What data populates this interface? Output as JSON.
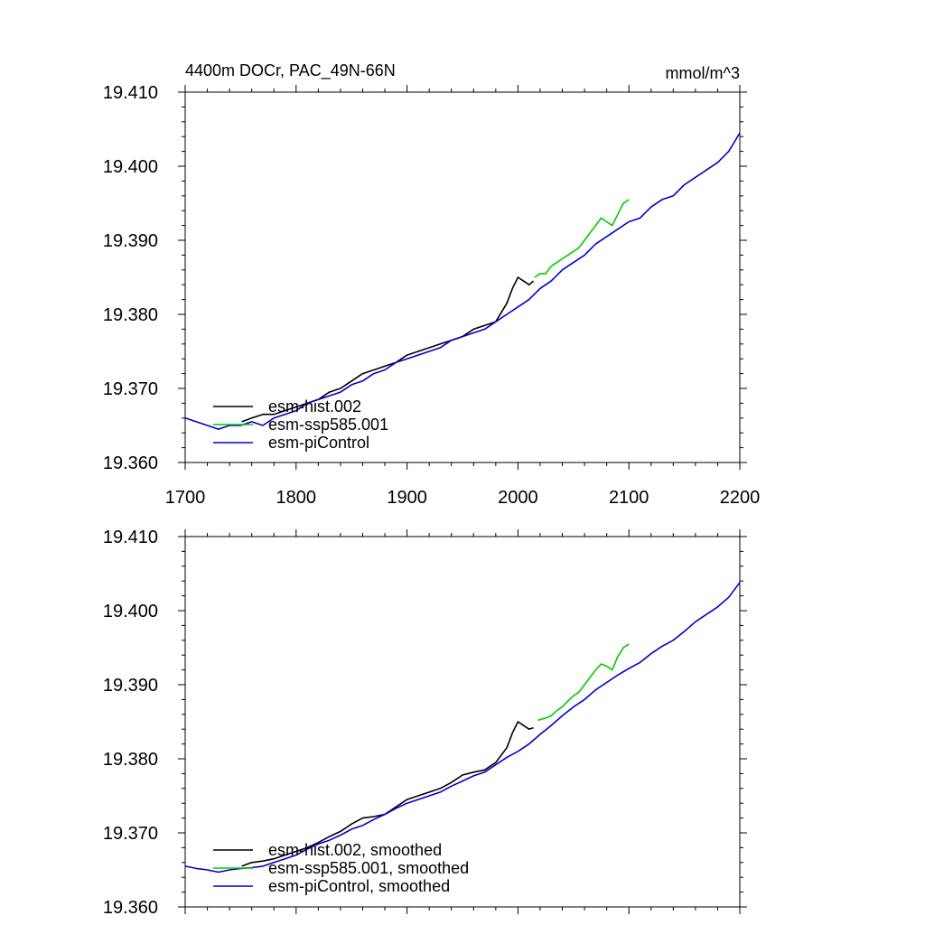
{
  "chart_data": [
    {
      "type": "line",
      "panel": "top",
      "title_left": "4400m DOCr, PAC_49N-66N",
      "title_right": "mmol/m^3",
      "xlim": [
        1700,
        2200
      ],
      "ylim": [
        19.36,
        19.41
      ],
      "x_ticks": [
        "1700",
        "1800",
        "1900",
        "2000",
        "2100",
        "2200"
      ],
      "y_ticks": [
        "19.360",
        "19.370",
        "19.380",
        "19.390",
        "19.400",
        "19.410"
      ],
      "legend_position": "bottom-left",
      "series": [
        {
          "name": "esm-hist.002",
          "color": "#000000",
          "x": [
            1751,
            1760,
            1770,
            1780,
            1790,
            1800,
            1810,
            1820,
            1830,
            1840,
            1850,
            1860,
            1870,
            1880,
            1890,
            1900,
            1910,
            1920,
            1930,
            1940,
            1950,
            1960,
            1970,
            1980,
            1990,
            1995,
            2000,
            2005,
            2010,
            2014
          ],
          "y": [
            19.3655,
            19.366,
            19.3665,
            19.3665,
            19.367,
            19.3675,
            19.368,
            19.3685,
            19.3695,
            19.37,
            19.371,
            19.372,
            19.3725,
            19.373,
            19.3735,
            19.3745,
            19.375,
            19.3755,
            19.376,
            19.3765,
            19.377,
            19.378,
            19.3785,
            19.379,
            19.3815,
            19.3835,
            19.385,
            19.3845,
            19.384,
            19.3845
          ]
        },
        {
          "name": "esm-ssp585.001",
          "color": "#00cc00",
          "x": [
            2015,
            2020,
            2025,
            2030,
            2035,
            2040,
            2045,
            2050,
            2055,
            2060,
            2065,
            2070,
            2075,
            2080,
            2085,
            2090,
            2095,
            2100
          ],
          "y": [
            19.385,
            19.3855,
            19.3855,
            19.3865,
            19.387,
            19.3875,
            19.388,
            19.3885,
            19.389,
            19.39,
            19.391,
            19.392,
            19.393,
            19.3925,
            19.392,
            19.3935,
            19.395,
            19.3955
          ]
        },
        {
          "name": "esm-piControl",
          "color": "#0000cc",
          "x": [
            1700,
            1710,
            1720,
            1730,
            1740,
            1750,
            1760,
            1770,
            1780,
            1790,
            1800,
            1810,
            1820,
            1830,
            1840,
            1850,
            1860,
            1870,
            1880,
            1890,
            1900,
            1910,
            1920,
            1930,
            1940,
            1950,
            1960,
            1970,
            1980,
            1990,
            2000,
            2010,
            2020,
            2030,
            2040,
            2050,
            2060,
            2070,
            2080,
            2090,
            2100,
            2110,
            2120,
            2130,
            2140,
            2150,
            2160,
            2170,
            2180,
            2190,
            2200
          ],
          "y": [
            19.366,
            19.3655,
            19.365,
            19.3645,
            19.365,
            19.365,
            19.3655,
            19.365,
            19.366,
            19.3665,
            19.367,
            19.368,
            19.3685,
            19.369,
            19.3695,
            19.3705,
            19.371,
            19.372,
            19.3725,
            19.3735,
            19.374,
            19.3745,
            19.375,
            19.3755,
            19.3765,
            19.377,
            19.3775,
            19.378,
            19.379,
            19.38,
            19.381,
            19.382,
            19.3835,
            19.3845,
            19.386,
            19.387,
            19.388,
            19.3895,
            19.3905,
            19.3915,
            19.3925,
            19.393,
            19.3945,
            19.3955,
            19.396,
            19.3975,
            19.3985,
            19.3995,
            19.4005,
            19.402,
            19.4045
          ]
        }
      ]
    },
    {
      "type": "line",
      "panel": "bottom",
      "xlim": [
        1700,
        2200
      ],
      "ylim": [
        19.36,
        19.41
      ],
      "y_ticks": [
        "19.360",
        "19.370",
        "19.380",
        "19.390",
        "19.400",
        "19.410"
      ],
      "legend_position": "bottom-left",
      "series": [
        {
          "name": "esm-hist.002, smoothed",
          "color": "#000000",
          "x": [
            1751,
            1760,
            1770,
            1780,
            1790,
            1800,
            1810,
            1820,
            1830,
            1840,
            1850,
            1860,
            1870,
            1880,
            1890,
            1900,
            1910,
            1920,
            1930,
            1940,
            1950,
            1960,
            1970,
            1980,
            1990,
            1995,
            2000,
            2005,
            2010,
            2014
          ],
          "y": [
            19.3655,
            19.366,
            19.3662,
            19.3665,
            19.367,
            19.3675,
            19.368,
            19.3687,
            19.3695,
            19.3702,
            19.3712,
            19.372,
            19.3722,
            19.3725,
            19.3735,
            19.3745,
            19.375,
            19.3755,
            19.376,
            19.3768,
            19.3778,
            19.3782,
            19.3785,
            19.3795,
            19.3815,
            19.3835,
            19.385,
            19.3845,
            19.384,
            19.3842
          ]
        },
        {
          "name": "esm-ssp585.001, smoothed",
          "color": "#00cc00",
          "x": [
            2018,
            2025,
            2030,
            2035,
            2040,
            2045,
            2050,
            2055,
            2060,
            2065,
            2070,
            2075,
            2080,
            2085,
            2090,
            2095,
            2100
          ],
          "y": [
            19.3852,
            19.3855,
            19.3858,
            19.3865,
            19.387,
            19.3878,
            19.3885,
            19.389,
            19.39,
            19.391,
            19.392,
            19.3928,
            19.3925,
            19.392,
            19.3938,
            19.395,
            19.3955
          ]
        },
        {
          "name": "esm-piControl, smoothed",
          "color": "#0000cc",
          "x": [
            1700,
            1710,
            1720,
            1730,
            1740,
            1750,
            1760,
            1770,
            1780,
            1790,
            1800,
            1810,
            1820,
            1830,
            1840,
            1850,
            1860,
            1870,
            1880,
            1890,
            1900,
            1910,
            1920,
            1930,
            1940,
            1950,
            1960,
            1970,
            1980,
            1990,
            2000,
            2010,
            2020,
            2030,
            2040,
            2050,
            2060,
            2070,
            2080,
            2090,
            2100,
            2110,
            2120,
            2130,
            2140,
            2150,
            2160,
            2170,
            2180,
            2190,
            2200
          ],
          "y": [
            19.3655,
            19.3652,
            19.365,
            19.3647,
            19.365,
            19.3652,
            19.3653,
            19.3655,
            19.366,
            19.3665,
            19.367,
            19.3678,
            19.3685,
            19.369,
            19.3697,
            19.3705,
            19.371,
            19.3718,
            19.3725,
            19.3733,
            19.374,
            19.3745,
            19.375,
            19.3755,
            19.3763,
            19.377,
            19.3777,
            19.3782,
            19.3792,
            19.3802,
            19.381,
            19.382,
            19.3833,
            19.3845,
            19.3858,
            19.387,
            19.388,
            19.3893,
            19.3903,
            19.3913,
            19.3922,
            19.393,
            19.3942,
            19.3952,
            19.396,
            19.3972,
            19.3985,
            19.3995,
            19.4005,
            19.4018,
            19.4038
          ]
        }
      ]
    }
  ]
}
